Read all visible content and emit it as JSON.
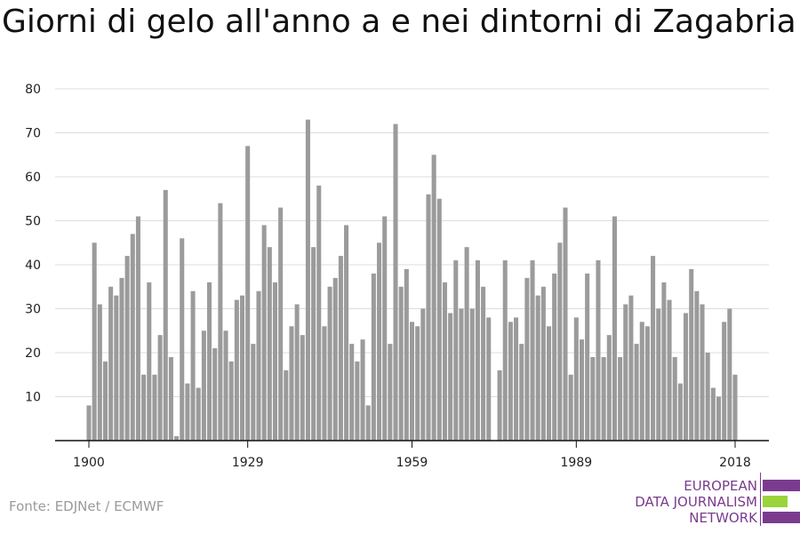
{
  "header": {
    "title": "Giorni di gelo all'anno a e nei dintorni di Zagabria"
  },
  "footer": {
    "source": "Fonte: EDJNet / ECMWF"
  },
  "logo": {
    "lines": [
      "EUROPEAN",
      "DATA JOURNALISM",
      "NETWORK"
    ],
    "colors": {
      "text": "#7a3b8f",
      "bar_purple": "#7a3b8f",
      "bar_green": "#9ad33c"
    }
  },
  "chart_data": {
    "type": "bar",
    "title": "Giorni di gelo all'anno a e nei dintorni di Zagabria",
    "xlabel": "",
    "ylabel": "",
    "x_ticks": [
      1900,
      1929,
      1959,
      1989,
      2018
    ],
    "y_ticks": [
      10,
      20,
      30,
      40,
      50,
      60,
      70,
      80
    ],
    "ylim": [
      0,
      80
    ],
    "xlim": [
      1900,
      2018
    ],
    "grid": true,
    "bar_color": "#9b9b9b",
    "years": [
      1900,
      1901,
      1902,
      1903,
      1904,
      1905,
      1906,
      1907,
      1908,
      1909,
      1910,
      1911,
      1912,
      1913,
      1914,
      1915,
      1916,
      1917,
      1918,
      1919,
      1920,
      1921,
      1922,
      1923,
      1924,
      1925,
      1926,
      1927,
      1928,
      1929,
      1930,
      1931,
      1932,
      1933,
      1934,
      1935,
      1936,
      1937,
      1938,
      1939,
      1940,
      1941,
      1942,
      1943,
      1944,
      1945,
      1946,
      1947,
      1948,
      1949,
      1950,
      1951,
      1952,
      1953,
      1954,
      1955,
      1956,
      1957,
      1958,
      1959,
      1960,
      1961,
      1962,
      1963,
      1964,
      1965,
      1966,
      1967,
      1968,
      1969,
      1970,
      1971,
      1972,
      1973,
      1974,
      1975,
      1976,
      1977,
      1978,
      1979,
      1980,
      1981,
      1982,
      1983,
      1984,
      1985,
      1986,
      1987,
      1988,
      1989,
      1990,
      1991,
      1992,
      1993,
      1994,
      1995,
      1996,
      1997,
      1998,
      1999,
      2000,
      2001,
      2002,
      2003,
      2004,
      2005,
      2006,
      2007,
      2008,
      2009,
      2010,
      2011,
      2012,
      2013,
      2014,
      2015,
      2016,
      2017,
      2018
    ],
    "values": [
      8,
      45,
      31,
      18,
      35,
      33,
      37,
      42,
      47,
      51,
      15,
      36,
      15,
      24,
      57,
      19,
      1,
      46,
      13,
      34,
      12,
      25,
      36,
      21,
      54,
      25,
      18,
      32,
      33,
      67,
      22,
      34,
      49,
      44,
      36,
      53,
      16,
      26,
      31,
      24,
      73,
      44,
      58,
      26,
      35,
      37,
      42,
      49,
      22,
      18,
      23,
      8,
      38,
      45,
      51,
      22,
      72,
      35,
      39,
      27,
      26,
      30,
      56,
      65,
      55,
      36,
      29,
      41,
      30,
      44,
      30,
      41,
      35,
      28,
      0,
      16,
      41,
      27,
      28,
      22,
      37,
      41,
      33,
      35,
      26,
      38,
      45,
      53,
      15,
      28,
      23,
      38,
      19,
      41,
      19,
      24,
      51,
      19,
      31,
      33,
      22,
      27,
      26,
      42,
      30,
      36,
      32,
      19,
      13,
      29,
      39,
      34,
      31,
      20,
      12,
      10,
      27,
      30,
      15
    ]
  }
}
